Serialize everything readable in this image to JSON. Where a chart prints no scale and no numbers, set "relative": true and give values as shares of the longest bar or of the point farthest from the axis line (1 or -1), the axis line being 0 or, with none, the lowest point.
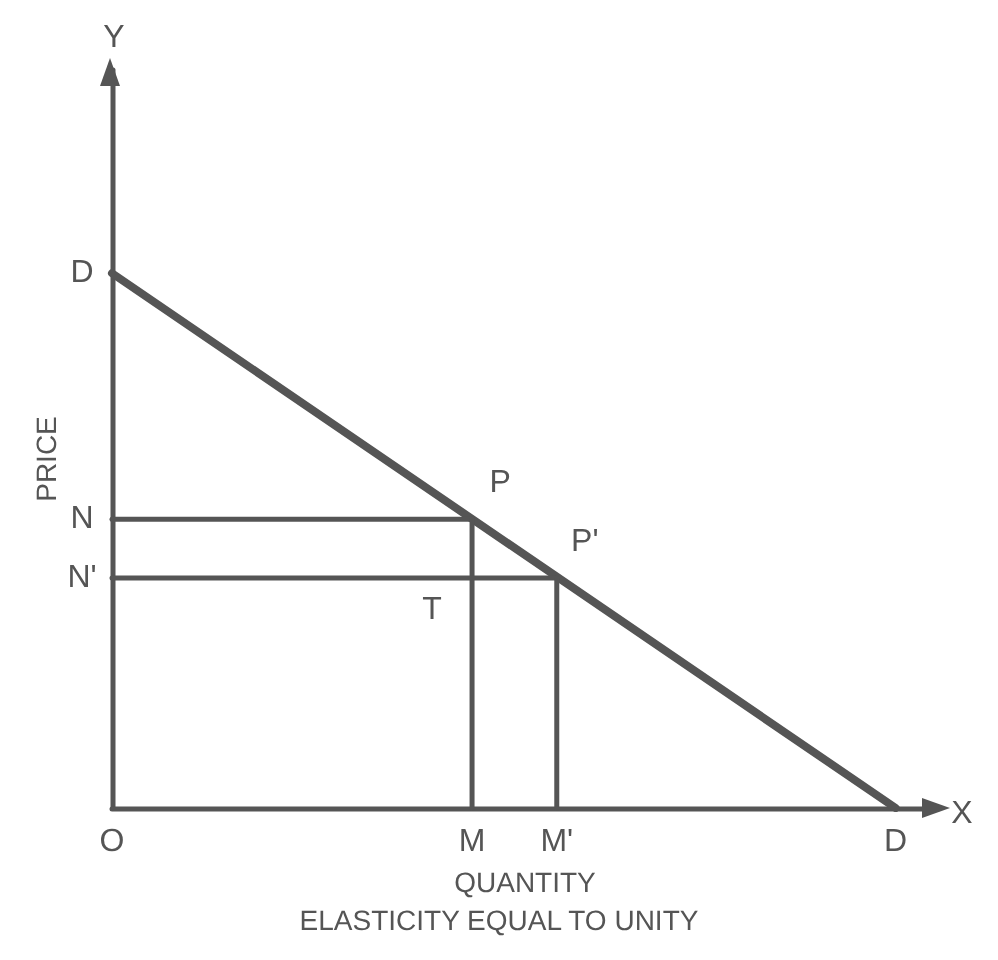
{
  "chart_data": {
    "type": "line",
    "title": "ELASTICITY EQUAL TO UNITY",
    "xlabel": "QUANTITY",
    "ylabel": "PRICE",
    "relative": true,
    "categories": [
      "O",
      null,
      null,
      null,
      null,
      null,
      null,
      null,
      null,
      null,
      null,
      null,
      null,
      null,
      null,
      null,
      null,
      "M",
      null,
      null,
      null,
      "M'",
      null,
      null,
      null,
      null,
      null,
      null,
      null,
      null,
      null,
      null,
      null,
      null,
      null,
      null,
      null,
      "D",
      null,
      null
    ],
    "series": [
      {
        "color": "#555555",
        "x": [
          "O",
          "D"
        ],
        "values": [
          1,
          0
        ]
      },
      {
        "color": "#555555",
        "x": [
          "O",
          "M"
        ],
        "values": [
          0.54,
          0.54
        ]
      },
      {
        "color": "#555555",
        "x": [
          "M",
          "M"
        ],
        "values": [
          0,
          0.54
        ]
      },
      {
        "color": "#555555",
        "x": [
          "O",
          "M'"
        ],
        "values": [
          0.43,
          0.43
        ]
      },
      {
        "color": "#555555",
        "x": [
          "M'",
          "M'"
        ],
        "values": [
          0,
          0.43
        ]
      }
    ],
    "annotations": [
      "Y",
      "X",
      {
        "text": "D",
        "x": "O",
        "y": 1
      },
      {
        "text": "N",
        "x": "O",
        "y": 0.54
      },
      {
        "text": "N'",
        "x": "O",
        "y": 0.43
      },
      {
        "text": "P",
        "x": "M",
        "y": 0.54
      },
      {
        "text": "P'",
        "x": "M'",
        "y": 0.43
      },
      {
        "text": "T",
        "x": "M",
        "y": 0.43
      }
    ]
  }
}
